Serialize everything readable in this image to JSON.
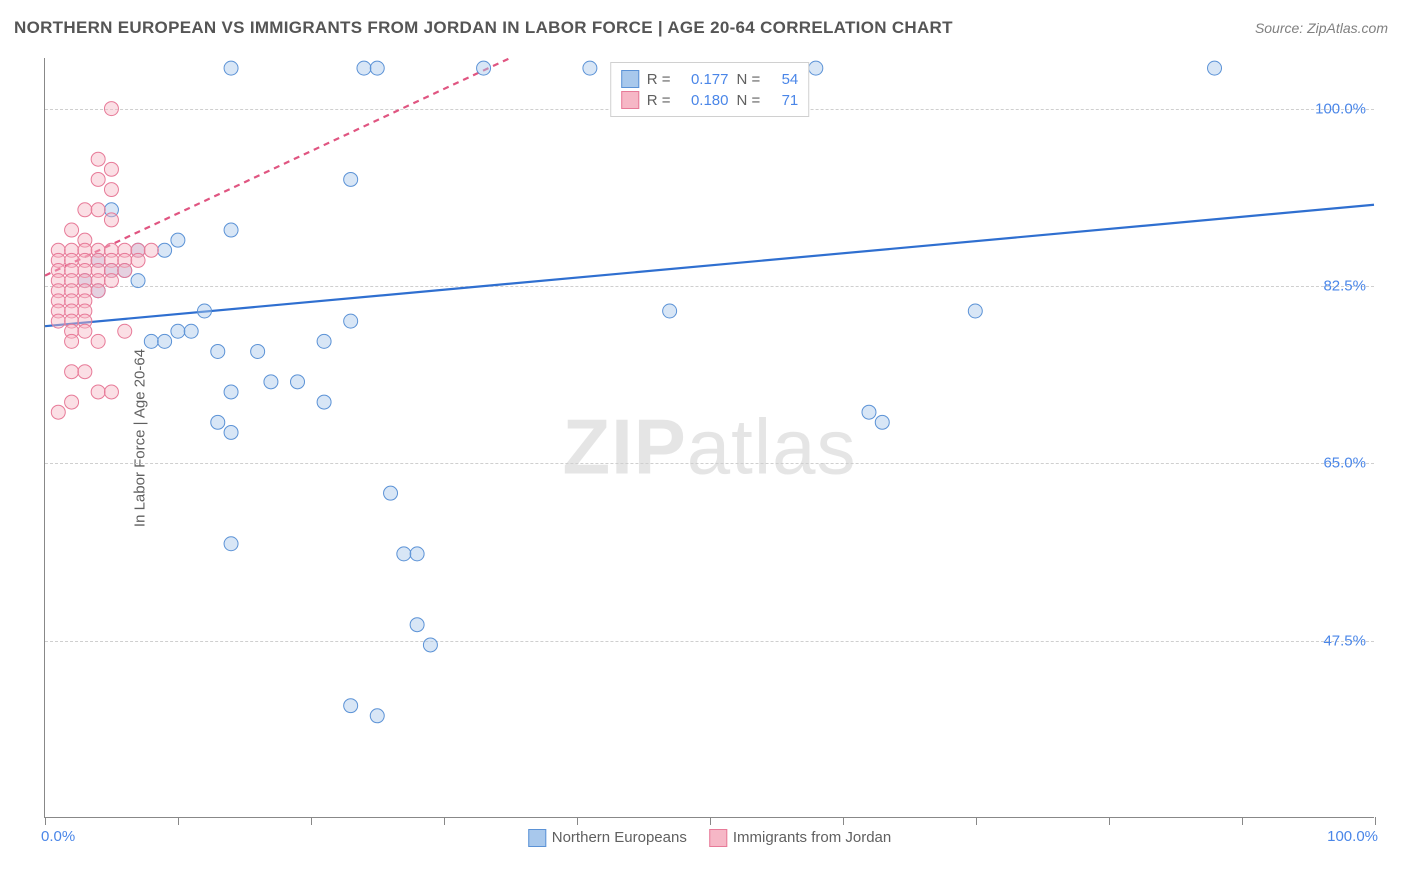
{
  "title": "NORTHERN EUROPEAN VS IMMIGRANTS FROM JORDAN IN LABOR FORCE | AGE 20-64 CORRELATION CHART",
  "source": "Source: ZipAtlas.com",
  "ylabel": "In Labor Force | Age 20-64",
  "watermark_parts": [
    "ZIP",
    "atlas"
  ],
  "chart": {
    "type": "scatter-with-regression",
    "plot_background": "#ffffff",
    "grid_color": "#cfcfcf",
    "axis_color": "#888888",
    "tick_label_color": "#4a86e8",
    "label_color": "#606060",
    "label_fontsize": 15,
    "title_fontsize": 17,
    "xlim": [
      0,
      100
    ],
    "ylim": [
      30,
      105
    ],
    "x_ticks": [
      0,
      10,
      20,
      30,
      40,
      50,
      60,
      70,
      80,
      90,
      100
    ],
    "x_tick_labels": {
      "0": "0.0%",
      "100": "100.0%"
    },
    "y_gridlines": [
      47.5,
      65.0,
      82.5,
      100.0
    ],
    "y_tick_labels": [
      "47.5%",
      "65.0%",
      "82.5%",
      "100.0%"
    ],
    "marker_radius": 7,
    "marker_opacity": 0.45,
    "line_width": 2.2,
    "series": [
      {
        "name": "Northern Europeans",
        "fill": "#a8c8ec",
        "stroke": "#5b92d6",
        "line_color": "#2f6fd0",
        "line_dash": "none",
        "R": "0.177",
        "N": "54",
        "regression": {
          "x1": 0,
          "y1": 78.5,
          "x2": 100,
          "y2": 90.5
        },
        "points": [
          [
            14,
            104
          ],
          [
            24,
            104
          ],
          [
            25,
            104
          ],
          [
            33,
            104
          ],
          [
            41,
            104
          ],
          [
            58,
            104
          ],
          [
            88,
            104
          ],
          [
            23,
            93
          ],
          [
            5,
            90
          ],
          [
            7,
            86
          ],
          [
            14,
            88
          ],
          [
            9,
            86
          ],
          [
            10,
            87
          ],
          [
            4,
            85
          ],
          [
            5,
            84
          ],
          [
            6,
            84
          ],
          [
            7,
            83
          ],
          [
            3,
            83
          ],
          [
            4,
            82
          ],
          [
            8,
            77
          ],
          [
            9,
            77
          ],
          [
            10,
            78
          ],
          [
            11,
            78
          ],
          [
            12,
            80
          ],
          [
            13,
            76
          ],
          [
            16,
            76
          ],
          [
            21,
            77
          ],
          [
            23,
            79
          ],
          [
            47,
            80
          ],
          [
            70,
            80
          ],
          [
            14,
            72
          ],
          [
            17,
            73
          ],
          [
            19,
            73
          ],
          [
            13,
            69
          ],
          [
            14,
            68
          ],
          [
            21,
            71
          ],
          [
            63,
            69
          ],
          [
            62,
            70
          ],
          [
            26,
            62
          ],
          [
            14,
            57
          ],
          [
            27,
            56
          ],
          [
            28,
            56
          ],
          [
            28,
            49
          ],
          [
            29,
            47
          ],
          [
            23,
            41
          ],
          [
            25,
            40
          ]
        ]
      },
      {
        "name": "Immigrants from Jordan",
        "fill": "#f6b7c6",
        "stroke": "#e77a98",
        "line_color": "#e05581",
        "line_dash": "6,5",
        "R": "0.180",
        "N": "71",
        "regression": {
          "x1": 0,
          "y1": 83.5,
          "x2": 35,
          "y2": 105
        },
        "points": [
          [
            5,
            100
          ],
          [
            4,
            95
          ],
          [
            5,
            94
          ],
          [
            4,
            93
          ],
          [
            5,
            92
          ],
          [
            3,
            90
          ],
          [
            4,
            90
          ],
          [
            5,
            89
          ],
          [
            2,
            88
          ],
          [
            3,
            87
          ],
          [
            1,
            86
          ],
          [
            2,
            86
          ],
          [
            3,
            86
          ],
          [
            4,
            86
          ],
          [
            5,
            86
          ],
          [
            6,
            86
          ],
          [
            7,
            86
          ],
          [
            8,
            86
          ],
          [
            1,
            85
          ],
          [
            2,
            85
          ],
          [
            3,
            85
          ],
          [
            4,
            85
          ],
          [
            5,
            85
          ],
          [
            6,
            85
          ],
          [
            7,
            85
          ],
          [
            1,
            84
          ],
          [
            2,
            84
          ],
          [
            3,
            84
          ],
          [
            4,
            84
          ],
          [
            5,
            84
          ],
          [
            6,
            84
          ],
          [
            1,
            83
          ],
          [
            2,
            83
          ],
          [
            3,
            83
          ],
          [
            4,
            83
          ],
          [
            5,
            83
          ],
          [
            1,
            82
          ],
          [
            2,
            82
          ],
          [
            3,
            82
          ],
          [
            4,
            82
          ],
          [
            1,
            81
          ],
          [
            2,
            81
          ],
          [
            3,
            81
          ],
          [
            1,
            80
          ],
          [
            2,
            80
          ],
          [
            3,
            80
          ],
          [
            1,
            79
          ],
          [
            2,
            79
          ],
          [
            3,
            79
          ],
          [
            2,
            78
          ],
          [
            3,
            78
          ],
          [
            6,
            78
          ],
          [
            2,
            77
          ],
          [
            4,
            77
          ],
          [
            2,
            74
          ],
          [
            3,
            74
          ],
          [
            4,
            72
          ],
          [
            5,
            72
          ],
          [
            2,
            71
          ],
          [
            1,
            70
          ]
        ]
      }
    ]
  },
  "legend_top": {
    "r_label": "R  =",
    "n_label": "N  ="
  },
  "legend_bottom": {
    "series1": "Northern Europeans",
    "series2": "Immigrants from Jordan"
  }
}
